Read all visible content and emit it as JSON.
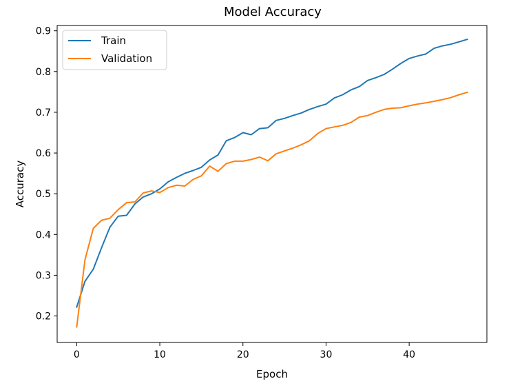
{
  "chart_data": {
    "type": "line",
    "title": "Model Accuracy",
    "xlabel": "Epoch",
    "ylabel": "Accuracy",
    "xlim": [
      -2.35,
      49.35
    ],
    "ylim": [
      0.135,
      0.913
    ],
    "xticks": [
      0,
      10,
      20,
      30,
      40
    ],
    "yticks": [
      0.2,
      0.3,
      0.4,
      0.5,
      0.6,
      0.7,
      0.8,
      0.9
    ],
    "grid": false,
    "legend": {
      "position": "top-left"
    },
    "x": [
      0,
      1,
      2,
      3,
      4,
      5,
      6,
      7,
      8,
      9,
      10,
      11,
      12,
      13,
      14,
      15,
      16,
      17,
      18,
      19,
      20,
      21,
      22,
      23,
      24,
      25,
      26,
      27,
      28,
      29,
      30,
      31,
      32,
      33,
      34,
      35,
      36,
      37,
      38,
      39,
      40,
      41,
      42,
      43,
      44,
      45,
      46,
      47
    ],
    "series": [
      {
        "name": "Train",
        "color": "#1f77b4",
        "values": [
          0.222,
          0.285,
          0.315,
          0.368,
          0.418,
          0.445,
          0.447,
          0.475,
          0.492,
          0.5,
          0.512,
          0.529,
          0.54,
          0.55,
          0.557,
          0.565,
          0.583,
          0.595,
          0.63,
          0.638,
          0.65,
          0.645,
          0.66,
          0.662,
          0.68,
          0.685,
          0.692,
          0.698,
          0.707,
          0.714,
          0.72,
          0.735,
          0.743,
          0.755,
          0.763,
          0.778,
          0.785,
          0.793,
          0.806,
          0.82,
          0.832,
          0.838,
          0.843,
          0.857,
          0.863,
          0.867,
          0.873,
          0.879
        ]
      },
      {
        "name": "Validation",
        "color": "#ff7f0e",
        "values": [
          0.173,
          0.338,
          0.415,
          0.435,
          0.44,
          0.461,
          0.478,
          0.48,
          0.502,
          0.507,
          0.503,
          0.515,
          0.521,
          0.519,
          0.535,
          0.544,
          0.568,
          0.555,
          0.574,
          0.58,
          0.58,
          0.584,
          0.59,
          0.581,
          0.598,
          0.605,
          0.612,
          0.62,
          0.63,
          0.648,
          0.66,
          0.664,
          0.668,
          0.675,
          0.688,
          0.692,
          0.7,
          0.707,
          0.71,
          0.711,
          0.716,
          0.72,
          0.723,
          0.727,
          0.731,
          0.736,
          0.743,
          0.749
        ]
      }
    ]
  }
}
